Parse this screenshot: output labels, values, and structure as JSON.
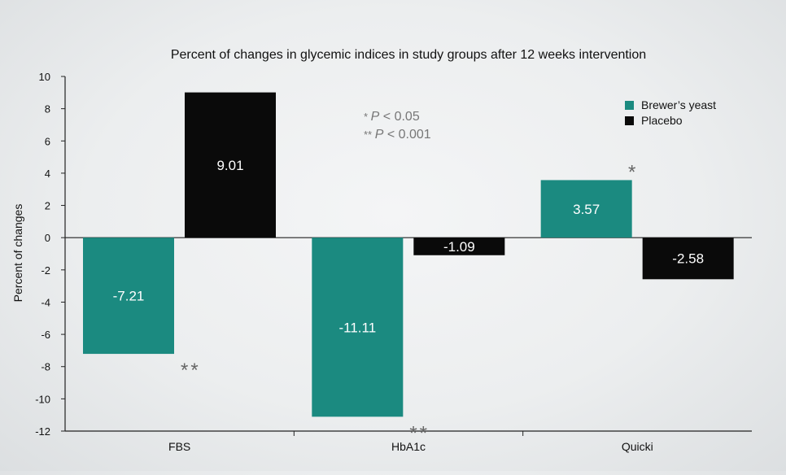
{
  "chart_data": {
    "type": "bar",
    "title": "Percent of changes in glycemic indices in study groups after 12 weeks intervention",
    "xlabel": "",
    "ylabel": "Percent of changes",
    "categories": [
      "FBS",
      "HbA1c",
      "Quicki"
    ],
    "series": [
      {
        "name": "Brewer’s yeast",
        "color": "#1b8a80",
        "values": [
          -7.21,
          -11.11,
          3.57
        ],
        "value_labels": [
          "-7.21",
          "-11.11",
          "3.57"
        ],
        "significance": [
          "**",
          "**",
          "*"
        ]
      },
      {
        "name": "Placebo",
        "color": "#0a0a0a",
        "values": [
          9.01,
          -1.09,
          -2.58
        ],
        "value_labels": [
          "9.01",
          "-1.09",
          "-2.58"
        ],
        "significance": [
          "",
          "",
          ""
        ]
      }
    ],
    "ylim": [
      -12,
      10
    ],
    "yticks": [
      10,
      8,
      6,
      4,
      2,
      0,
      -2,
      -4,
      -6,
      -8,
      -10,
      -12
    ],
    "legend": {
      "position": "top-right"
    },
    "annotations": [
      {
        "text": "* P < 0.05"
      },
      {
        "text": "** P < 0.001"
      }
    ],
    "grid": false
  }
}
